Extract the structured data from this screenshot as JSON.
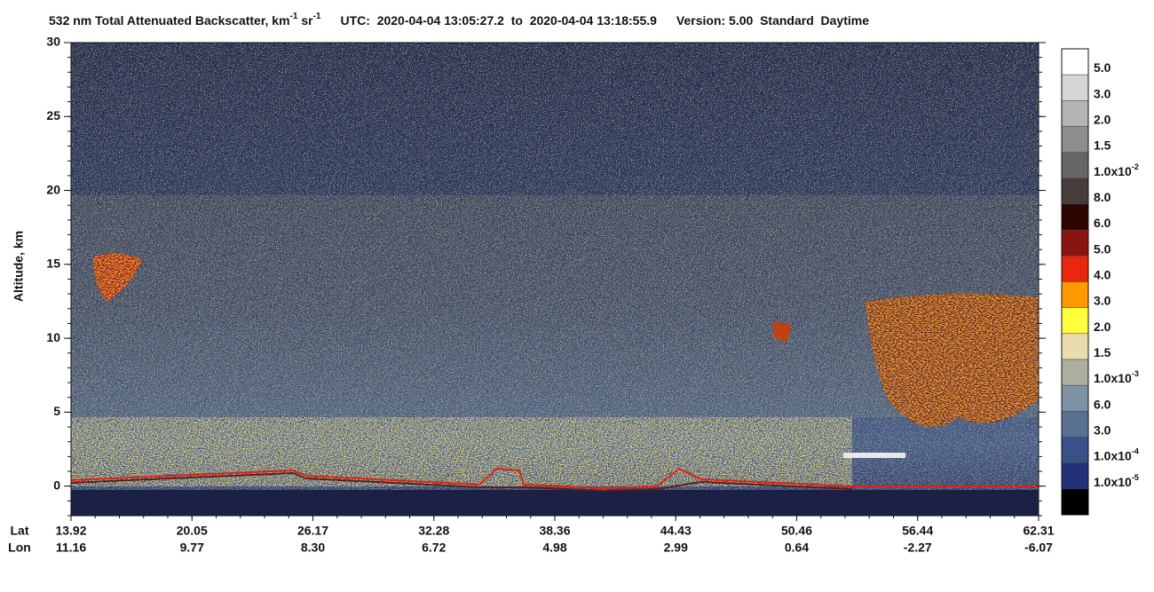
{
  "chart_data": {
    "type": "heatmap",
    "title_parts": [
      {
        "text": "532 nm Total Attenuated Backscatter, km"
      },
      {
        "text": "-1",
        "sup": true
      },
      {
        "text": " sr"
      },
      {
        "text": "-1",
        "sup": true
      }
    ],
    "utc": "UTC:  2020-04-04 13:05:27.2  to  2020-04-04 13:18:55.9",
    "version": "Version: 5.00  Standard  Daytime",
    "y_label": "Altitude, km",
    "ylim": [
      -2,
      30
    ],
    "yticks": [
      0,
      5,
      10,
      15,
      20,
      25,
      30
    ],
    "lat_label": "Lat",
    "lon_label": "Lon",
    "lat": [
      "13.92",
      "20.05",
      "26.17",
      "32.28",
      "38.36",
      "44.43",
      "50.46",
      "56.44",
      "62.31"
    ],
    "lon": [
      "11.16",
      "9.77",
      "8.30",
      "6.72",
      "4.98",
      "2.99",
      "0.64",
      "-2.27",
      "-6.07"
    ],
    "colorbar": {
      "colors": [
        "#ffffff",
        "#d6d6d6",
        "#b4b4b4",
        "#8e8e8e",
        "#666666",
        "#463c3a",
        "#2d0500",
        "#8a1510",
        "#e8280c",
        "#ff9900",
        "#ffff3c",
        "#ebdcb0",
        "#aeae9e",
        "#7f93a6",
        "#5a7090",
        "#3a5088",
        "#24307a",
        "#000000"
      ],
      "labels": [
        {
          "text": "5.0"
        },
        {
          "text": "3.0"
        },
        {
          "text": "2.0"
        },
        {
          "text": "1.5"
        },
        {
          "text": "1.0x10",
          "sup": "-2"
        },
        {
          "text": "8.0"
        },
        {
          "text": "6.0"
        },
        {
          "text": "5.0"
        },
        {
          "text": "4.0"
        },
        {
          "text": "3.0"
        },
        {
          "text": "2.0"
        },
        {
          "text": "1.5"
        },
        {
          "text": "1.0x10",
          "sup": "-3"
        },
        {
          "text": "6.0"
        },
        {
          "text": "3.0"
        },
        {
          "text": "1.0x10",
          "sup": "-4"
        },
        {
          "text": "1.0x10",
          "sup": "-5"
        }
      ]
    }
  }
}
